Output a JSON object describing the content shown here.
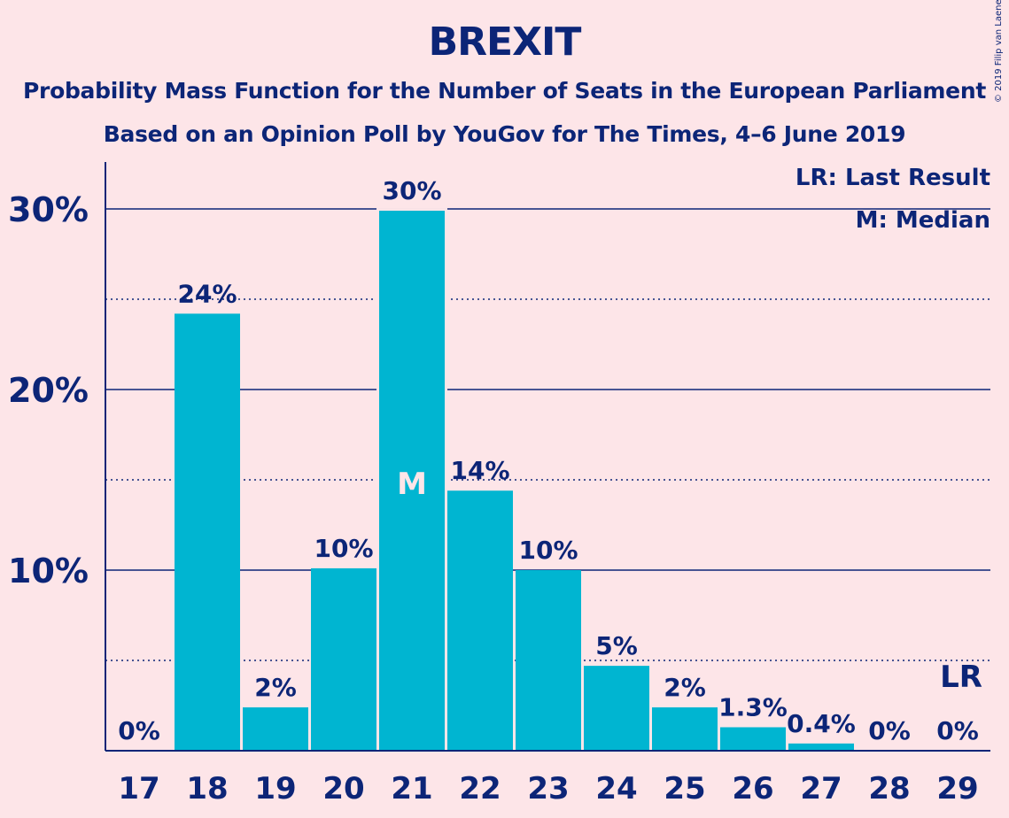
{
  "title": "BREXIT",
  "subtitle1": "Probability Mass Function for the Number of Seats in the European Parliament",
  "subtitle2": "Based on an Opinion Poll by YouGov for The Times, 4–6 June 2019",
  "copyright": "© 2019 Filip van Laenen",
  "legend": {
    "last_result": "LR: Last Result",
    "median": "M: Median"
  },
  "colors": {
    "bar": "#00b5d1",
    "text": "#0c2577",
    "background": "#fde5e8"
  },
  "chart_data": {
    "type": "bar",
    "categories": [
      "17",
      "18",
      "19",
      "20",
      "21",
      "22",
      "23",
      "24",
      "25",
      "26",
      "27",
      "28",
      "29"
    ],
    "values": [
      0,
      24.2,
      2.4,
      10.1,
      29.9,
      14.4,
      10.0,
      4.7,
      2.4,
      1.3,
      0.4,
      0,
      0
    ],
    "data_labels": [
      "0%",
      "24%",
      "2%",
      "10%",
      "30%",
      "14%",
      "10%",
      "5%",
      "2%",
      "1.3%",
      "0.4%",
      "0%",
      "0%"
    ],
    "ylim": [
      0,
      32.5
    ],
    "yticks": [
      10,
      20,
      30
    ],
    "ytick_labels": [
      "10%",
      "20%",
      "30%"
    ],
    "minor_gridlines": [
      5,
      15,
      25
    ],
    "median": {
      "category": "21",
      "marker": "M"
    },
    "last_result": {
      "category": "29",
      "marker": "LR"
    },
    "legend_position": "top-right"
  }
}
